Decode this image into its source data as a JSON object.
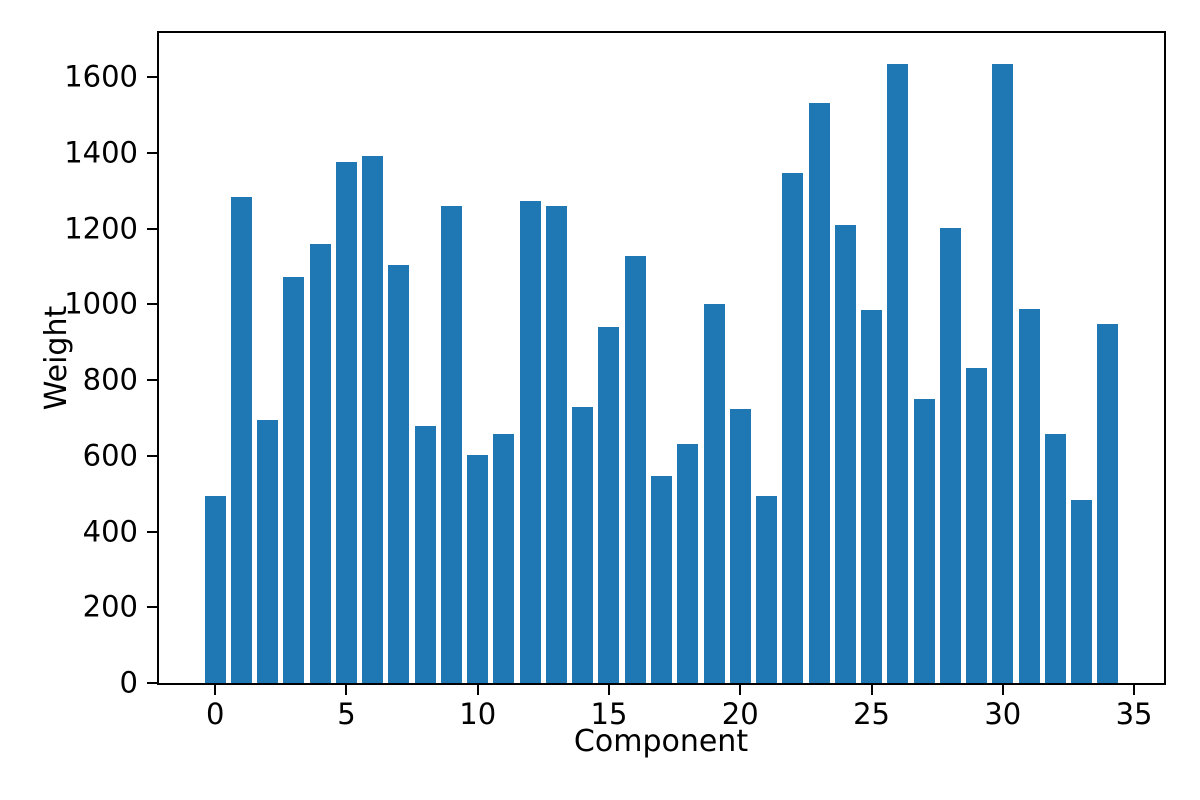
{
  "chart_data": {
    "type": "bar",
    "xlabel": "Component",
    "ylabel": "Weight",
    "bar_color": "#1f77b4",
    "bar_width": 0.8,
    "grid": false,
    "x": [
      0,
      1,
      2,
      3,
      4,
      5,
      6,
      7,
      8,
      9,
      10,
      11,
      12,
      13,
      14,
      15,
      16,
      17,
      18,
      19,
      20,
      21,
      22,
      23,
      24,
      25,
      26,
      27,
      28,
      29,
      30,
      31,
      32,
      33,
      34
    ],
    "values": [
      494,
      1284,
      695,
      1073,
      1160,
      1376,
      1391,
      1104,
      679,
      1260,
      602,
      657,
      1273,
      1259,
      728,
      940,
      1129,
      547,
      632,
      1000,
      723,
      493,
      1347,
      1533,
      1210,
      985,
      1634,
      749,
      1201,
      833,
      1636,
      988,
      659,
      483,
      948
    ],
    "xticks": [
      0,
      5,
      10,
      15,
      20,
      25,
      30,
      35
    ],
    "yticks": [
      0,
      200,
      400,
      600,
      800,
      1000,
      1200,
      1400,
      1600
    ],
    "xlim": [
      -2.14,
      36.14
    ],
    "ylim": [
      0,
      1717
    ]
  }
}
